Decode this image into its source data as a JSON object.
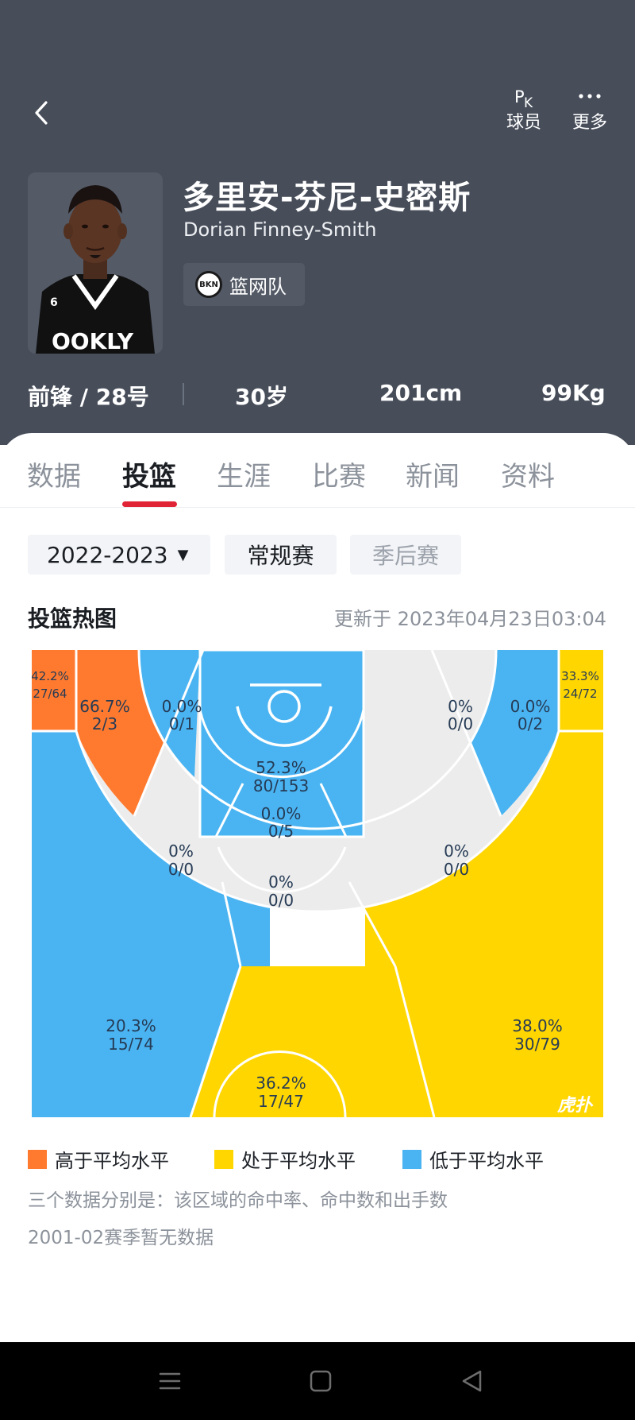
{
  "header": {
    "pk_label": "球员",
    "pk_icon_p": "P",
    "pk_icon_k": "K",
    "more_label": "更多"
  },
  "player": {
    "name_cn": "多里安-芬尼-史密斯",
    "name_en": "Dorian Finney-Smith",
    "team": "篮网队",
    "team_logo_text": "BKN",
    "position_number": "前锋 / 28号",
    "age": "30岁",
    "height": "201cm",
    "weight": "99Kg"
  },
  "tabs": [
    "数据",
    "投篮",
    "生涯",
    "比赛",
    "新闻",
    "资料"
  ],
  "active_tab": "投篮",
  "filters": {
    "season": "2022-2023",
    "regular": "常规赛",
    "playoff": "季后赛"
  },
  "heatmap": {
    "title": "投篮热图",
    "updated": "更新于 2023年04月23日03:04",
    "watermark": "虎扑",
    "colors": {
      "above_avg": "#ff7a2f",
      "avg": "#ffd600",
      "below_avg": "#4ab4f2",
      "no_data": "#ececec"
    },
    "zones": [
      {
        "id": "left-corner-3",
        "pct": "42.2%",
        "made_att": "27/64",
        "level": "above_avg"
      },
      {
        "id": "left-baseline-mid",
        "pct": "66.7%",
        "made_att": "2/3",
        "level": "above_avg"
      },
      {
        "id": "left-short-baseline",
        "pct": "0.0%",
        "made_att": "0/1",
        "level": "below_avg"
      },
      {
        "id": "restricted-area",
        "pct": "52.3%",
        "made_att": "80/153",
        "level": "below_avg"
      },
      {
        "id": "right-short-baseline",
        "pct": "0%",
        "made_att": "0/0",
        "level": "no_data"
      },
      {
        "id": "right-baseline-mid",
        "pct": "0.0%",
        "made_att": "0/2",
        "level": "below_avg"
      },
      {
        "id": "right-corner-3",
        "pct": "33.3%",
        "made_att": "24/72",
        "level": "avg"
      },
      {
        "id": "paint-non-ra",
        "pct": "0.0%",
        "made_att": "0/5",
        "level": "below_avg"
      },
      {
        "id": "left-elbow-mid",
        "pct": "0%",
        "made_att": "0/0",
        "level": "no_data"
      },
      {
        "id": "top-key-mid",
        "pct": "0%",
        "made_att": "0/0",
        "level": "no_data"
      },
      {
        "id": "right-elbow-mid",
        "pct": "0%",
        "made_att": "0/0",
        "level": "no_data"
      },
      {
        "id": "left-wing-3",
        "pct": "20.3%",
        "made_att": "15/74",
        "level": "below_avg"
      },
      {
        "id": "top-3",
        "pct": "36.2%",
        "made_att": "17/47",
        "level": "avg"
      },
      {
        "id": "right-wing-3",
        "pct": "38.0%",
        "made_att": "30/79",
        "level": "avg"
      }
    ],
    "legend": {
      "above": "高于平均水平",
      "avg": "处于平均水平",
      "below": "低于平均水平"
    },
    "note1": "三个数据分别是：该区域的命中率、命中数和出手数",
    "note2": "2001-02赛季暂无数据"
  },
  "icons": {
    "back": "chevron-left-icon",
    "pk": "pk-icon",
    "more": "more-dots-icon",
    "team_logo": "nets-logo-icon",
    "caret": "caret-down-icon",
    "nav_menu": "menu-icon",
    "nav_home": "home-icon",
    "nav_back": "back-triangle-icon"
  }
}
